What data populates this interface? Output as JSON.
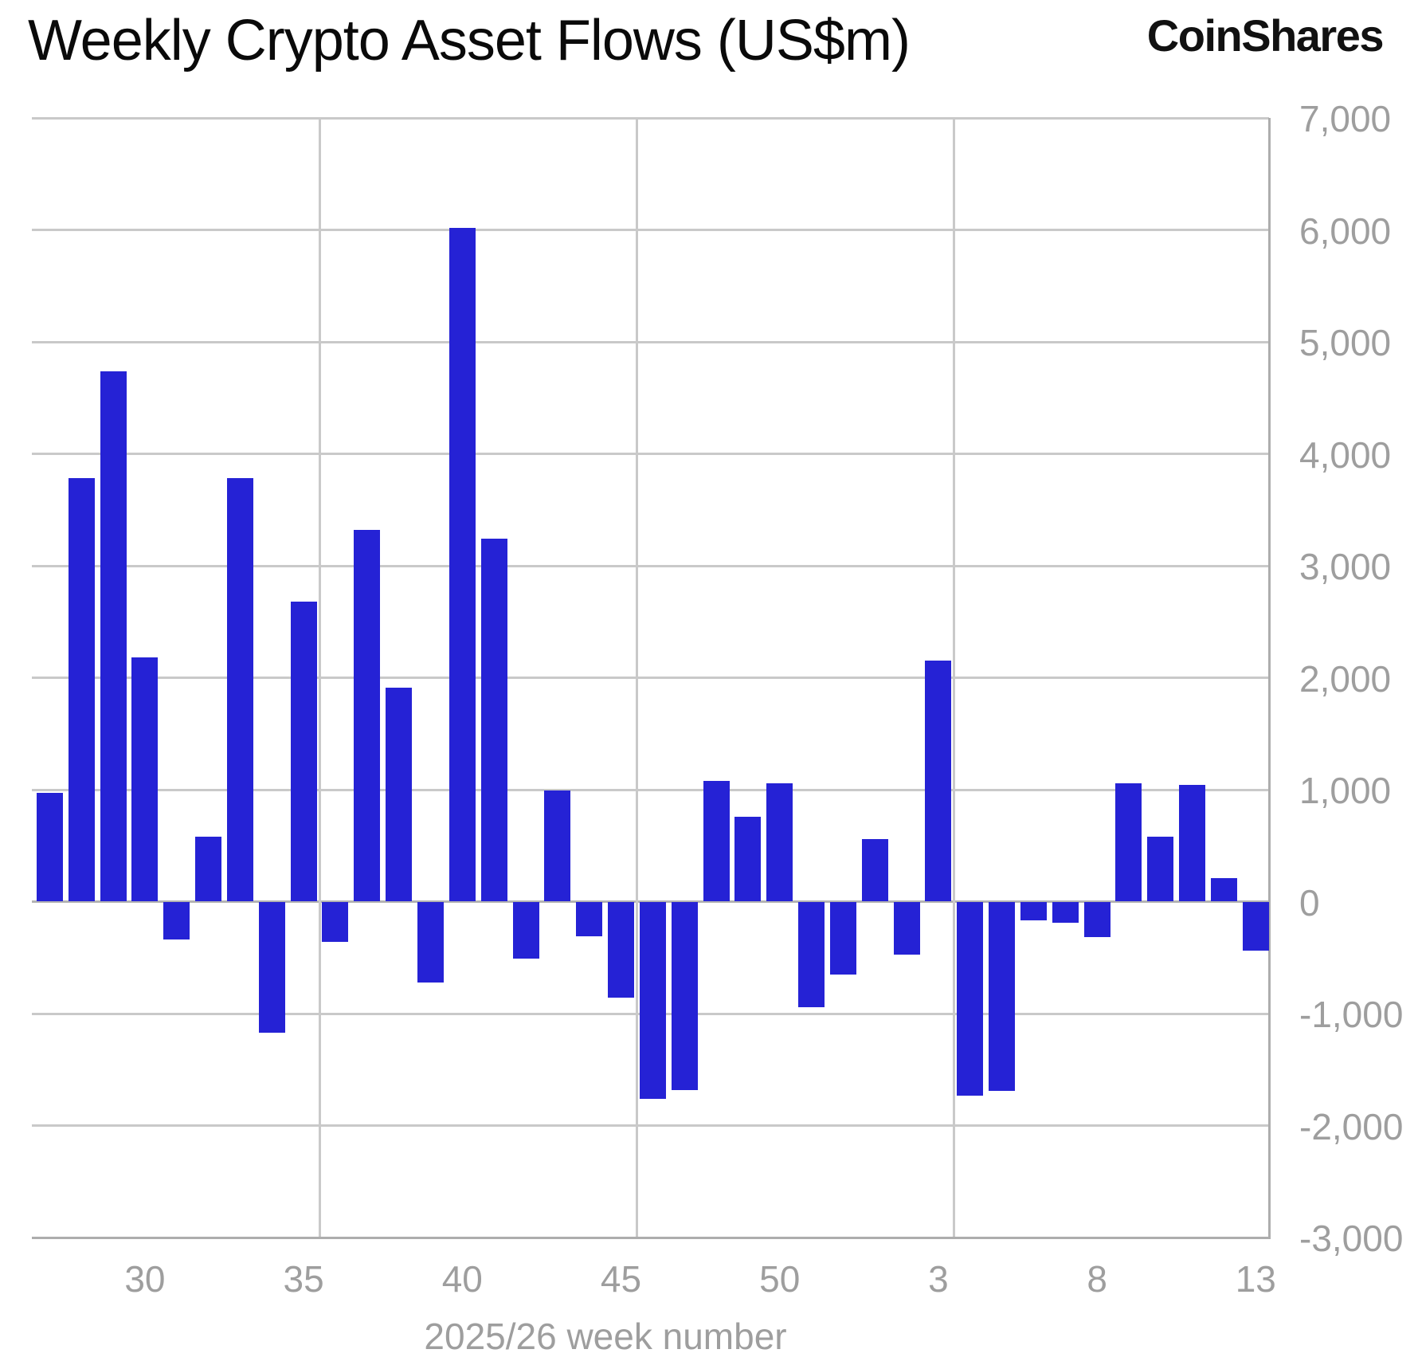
{
  "title": "Weekly Crypto Asset Flows (US$m)",
  "logo": "CoinShares",
  "chart_data": {
    "type": "bar",
    "title": "Weekly Crypto Asset Flows (US$m)",
    "x_axis_label": "2025/26 week number",
    "categories": [
      "27",
      "28",
      "29",
      "30",
      "31",
      "32",
      "33",
      "34",
      "35",
      "36",
      "37",
      "38",
      "39",
      "40",
      "41",
      "42",
      "43",
      "44",
      "45",
      "46",
      "47",
      "48",
      "49",
      "50",
      "51",
      "52",
      "1",
      "2",
      "3",
      "4",
      "5",
      "6",
      "7",
      "8",
      "9",
      "10",
      "11",
      "12",
      "13"
    ],
    "values": [
      970,
      3780,
      4740,
      2180,
      -340,
      580,
      3780,
      -1170,
      2680,
      -360,
      3320,
      1910,
      -720,
      6020,
      3240,
      -510,
      990,
      -310,
      -860,
      -1760,
      -1680,
      1080,
      760,
      1060,
      -940,
      -650,
      560,
      -470,
      2150,
      -1730,
      -1690,
      -170,
      -190,
      -320,
      1060,
      580,
      1040,
      210,
      -440
    ],
    "xtick_labels": [
      "30",
      "35",
      "40",
      "45",
      "50",
      "3",
      "8",
      "13"
    ],
    "xtick_indices": [
      3,
      8,
      13,
      18,
      23,
      28,
      33,
      38
    ],
    "yticks": [
      7000,
      6000,
      5000,
      4000,
      3000,
      2000,
      1000,
      0,
      -1000,
      -2000,
      -3000
    ],
    "ylim": [
      -3000,
      7000
    ],
    "grid": true,
    "legend_position": "none",
    "bar_color": "#2522d5",
    "grid_color": "#c9c9c9",
    "tick_text_color": "#9e9e9e"
  }
}
